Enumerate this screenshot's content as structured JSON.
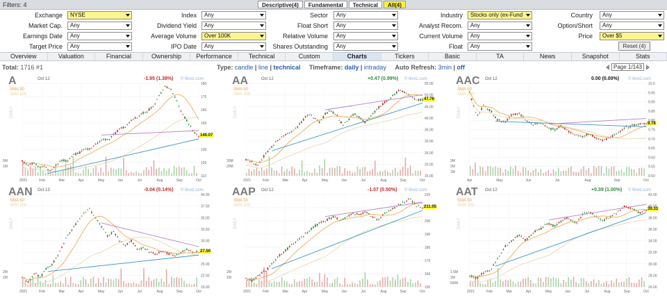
{
  "header": {
    "filters_title": "Filters: 4",
    "tabs": [
      "Descriptive(4)",
      "Fundamental",
      "Technical",
      "All(4)"
    ]
  },
  "filters": [
    [
      {
        "label": "Exchange",
        "value": "NYSE",
        "hl": true
      },
      {
        "label": "Index",
        "value": "Any",
        "hl": false
      },
      {
        "label": "Sector",
        "value": "Any",
        "hl": false
      },
      {
        "label": "Industry",
        "value": "Stocks only (ex-Fund",
        "hl": true
      },
      {
        "label": "Country",
        "value": "Any",
        "hl": false
      }
    ],
    [
      {
        "label": "Market Cap.",
        "value": "Any",
        "hl": false
      },
      {
        "label": "Dividend Yield",
        "value": "Any",
        "hl": false
      },
      {
        "label": "Float Short",
        "value": "Any",
        "hl": false
      },
      {
        "label": "Analyst Recom.",
        "value": "Any",
        "hl": false
      },
      {
        "label": "Option/Short",
        "value": "Any",
        "hl": false
      }
    ],
    [
      {
        "label": "Earnings Date",
        "value": "Any",
        "hl": false
      },
      {
        "label": "Average Volume",
        "value": "Over 100K",
        "hl": true
      },
      {
        "label": "Relative Volume",
        "value": "Any",
        "hl": false
      },
      {
        "label": "Current Volume",
        "value": "Any",
        "hl": false
      },
      {
        "label": "Price",
        "value": "Over $5",
        "hl": true
      }
    ],
    [
      {
        "label": "Target Price",
        "value": "Any",
        "hl": false
      },
      {
        "label": "IPO Date",
        "value": "Any",
        "hl": false
      },
      {
        "label": "Shares Outstanding",
        "value": "Any",
        "hl": false
      },
      {
        "label": "Float",
        "value": "Any",
        "hl": false
      }
    ]
  ],
  "reset_label": "Reset (4)",
  "view_tabs": [
    "Overview",
    "Valuation",
    "Financial",
    "Ownership",
    "Performance",
    "Technical",
    "Custom",
    "Charts",
    "Tickers",
    "Basic",
    "TA",
    "News",
    "Snapshot",
    "Stats"
  ],
  "active_view": "Charts",
  "info": {
    "total_label": "Total:",
    "total_value": "1716 #1",
    "type_label": "Type:",
    "type_candle": "candle",
    "type_line": "line",
    "type_technical": "technical",
    "timeframe_label": "Timeframe:",
    "tf_daily": "daily",
    "tf_intraday": "intraday",
    "refresh_label": "Auto Refresh:",
    "refresh_3min": "3min",
    "refresh_off": "off",
    "page": "Page 1/143"
  },
  "sma50": "SMA 50",
  "sma200": "SMA 200",
  "daily_label": "DAILY",
  "finviz": "© finviz.com",
  "colors": {
    "up": "#2e8b3a",
    "down": "#c62828",
    "sma50": "#f0a040",
    "sma200": "#e8d4a8",
    "trend_blue": "#3a95c8",
    "trend_purple": "#b77bc9"
  },
  "charts": [
    {
      "ticker": "A",
      "date": "Oct 12",
      "change": "-1.95 (1.38%)",
      "dir": "down",
      "price_tag": "140.07",
      "yaxis": [
        "180",
        "170",
        "160",
        "150",
        "140",
        "130",
        "120",
        "110"
      ],
      "ylim": [
        110,
        180
      ],
      "xaxis": [
        "2021",
        "Feb",
        "Mar",
        "Apr",
        "May",
        "Jun",
        "Jul",
        "Aug",
        "Sep",
        "Oct"
      ],
      "vol": [
        "5M",
        "1M"
      ],
      "closes": [
        121,
        118,
        120,
        116,
        117,
        113,
        119,
        122,
        121,
        126,
        127,
        131,
        130,
        134,
        138,
        137,
        141,
        145,
        147,
        151,
        154,
        157,
        159,
        163,
        170,
        178,
        176,
        168,
        158,
        151,
        144,
        140
      ]
    },
    {
      "ticker": "AA",
      "date": "Oct 12",
      "change": "+0.47 (0.99%)",
      "dir": "up",
      "price_tag": "47.76",
      "yaxis": [
        "55.00",
        "50.00",
        "45.00",
        "40.00",
        "35.00",
        "30.00",
        "25.00",
        "20.00",
        "15.00"
      ],
      "ylim": [
        15,
        55
      ],
      "xaxis": [
        "2021",
        "Feb",
        "Mar",
        "Apr",
        "May",
        "Jun",
        "Jul",
        "Aug",
        "Sep",
        "Oct"
      ],
      "vol": [
        "30M",
        "20M"
      ],
      "closes": [
        22,
        21,
        19,
        23,
        26,
        29,
        31,
        33,
        34,
        36,
        39,
        42,
        40,
        38,
        42,
        43,
        41,
        37,
        39,
        42,
        40,
        38,
        41,
        44,
        46,
        48,
        50,
        52,
        51,
        49,
        48,
        47.7
      ]
    },
    {
      "ticker": "AAC",
      "date": "Oct 12",
      "change": "0.00 (0.00%)",
      "dir": "flat",
      "price_tag": "9.78",
      "yaxis": [
        "10.0",
        "9.95",
        "9.90",
        "9.85",
        "9.80",
        "9.75",
        "9.70",
        "9.65",
        "9.60",
        "9.55",
        "9.50"
      ],
      "ylim": [
        9.5,
        10.0
      ],
      "xaxis": [
        "Apr",
        "May",
        "Jun",
        "Jul",
        "Aug",
        "Sep",
        "Oct"
      ],
      "vol": [
        "3M",
        "2M",
        "1M"
      ],
      "closes": [
        9.95,
        9.82,
        9.88,
        9.85,
        9.8,
        9.79,
        9.83,
        9.84,
        9.8,
        9.78,
        9.79,
        9.76,
        9.75,
        9.77,
        9.74,
        9.72,
        9.71,
        9.73,
        9.7,
        9.69,
        9.71,
        9.73,
        9.76,
        9.77,
        9.78,
        9.78
      ]
    },
    {
      "ticker": "AAN",
      "date": "Oct 13",
      "change": "-0.04 (0.14%)",
      "dir": "down",
      "price_tag": "27.50",
      "yaxis": [
        "40.00",
        "37.50",
        "35.00",
        "32.50",
        "30.00",
        "27.50",
        "25.00",
        "22.50",
        "20.00"
      ],
      "ylim": [
        20,
        40
      ],
      "xaxis": [
        "2021",
        "Feb",
        "Mar",
        "Apr",
        "May",
        "Jun",
        "Jul",
        "Aug",
        "Sep",
        "Oct"
      ],
      "vol": [
        "2M",
        "1M"
      ],
      "closes": [
        22,
        21,
        23,
        22,
        24,
        25,
        27,
        30,
        32,
        34,
        36,
        37,
        35,
        33,
        31,
        32,
        30,
        29,
        30,
        28,
        28.5,
        27.5,
        27,
        27.8,
        27.2,
        26.8,
        27.4,
        28,
        27.6,
        27.5
      ]
    },
    {
      "ticker": "AAP",
      "date": "Oct 12",
      "change": "-1.07 (0.50%)",
      "dir": "down",
      "price_tag": "211.05",
      "yaxis": [
        "220",
        "210",
        "200",
        "190",
        "180",
        "170",
        "160",
        "150"
      ],
      "ylim": [
        145,
        222
      ],
      "xaxis": [
        "2021",
        "Feb",
        "Mar",
        "Apr",
        "May",
        "Jun",
        "Jul",
        "Aug",
        "Sep",
        "Oct"
      ],
      "vol": [
        "2M",
        "1M"
      ],
      "closes": [
        152,
        150,
        155,
        158,
        163,
        170,
        174,
        179,
        183,
        187,
        192,
        196,
        199,
        201,
        204,
        200,
        203,
        206,
        205,
        208,
        204,
        201,
        206,
        209,
        212,
        216,
        218,
        213,
        211
      ]
    },
    {
      "ticker": "AAT",
      "date": "Oct 12",
      "change": "+0.39 (1.00%)",
      "dir": "up",
      "price_tag": "39.33",
      "yaxis": [
        "42.00",
        "40.00",
        "38.00",
        "36.00",
        "34.00",
        "32.00",
        "30.00",
        "28.00",
        "26.00"
      ],
      "ylim": [
        26,
        42
      ],
      "xaxis": [
        "2021",
        "Feb",
        "Mar",
        "Apr",
        "May",
        "Jun",
        "Jul",
        "Aug",
        "Sep",
        "Oct"
      ],
      "vol": [
        "1.5M",
        "1M",
        "500K"
      ],
      "closes": [
        28,
        27.5,
        28.5,
        29,
        31,
        33,
        34,
        35,
        34,
        35.5,
        36,
        37,
        36.5,
        37.5,
        38,
        37,
        38.5,
        39,
        38,
        37.5,
        38.2,
        39,
        40,
        39.5,
        38.8,
        39.33
      ]
    }
  ]
}
